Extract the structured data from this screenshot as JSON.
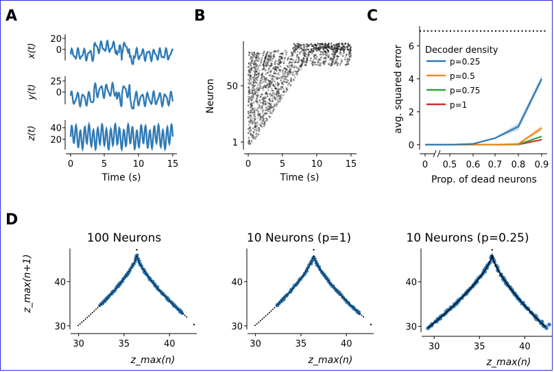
{
  "colors": {
    "blue": "#2f7ab6",
    "orange": "#f08a24",
    "green": "#35a33a",
    "red": "#c9302c",
    "black": "#000000",
    "dots": "#222222"
  },
  "panels": {
    "A": {
      "label": "A",
      "xlabel": "Time (s)",
      "xticks": [
        "0",
        "5",
        "10",
        "15"
      ],
      "rows": [
        {
          "ylabel": "x(t)",
          "yticks": [
            "20",
            "0"
          ]
        },
        {
          "ylabel": "y(t)",
          "yticks": [
            "25",
            "0"
          ]
        },
        {
          "ylabel": "z(t)",
          "yticks": [
            "40",
            "20"
          ]
        }
      ]
    },
    "B": {
      "label": "B",
      "xlabel": "Time (s)",
      "ylabel": "Neuron",
      "xticks": [
        "0",
        "5",
        "10",
        "15"
      ],
      "yticks": [
        "50",
        "1"
      ]
    },
    "C": {
      "label": "C",
      "xlabel": "Prop. of dead neurons",
      "ylabel": "avg. squared error",
      "xticks": [
        "0",
        "0.5",
        "0.6",
        "0.7",
        "0.8",
        "0.9"
      ],
      "yticks": [
        "0",
        "2",
        "4",
        "6"
      ],
      "legend_title": "Decoder density",
      "legend": [
        "p=0.25",
        "p=0.5",
        "p=0.75",
        "p=1"
      ]
    },
    "D": {
      "label": "D",
      "ylabel": "z_max(n+1)",
      "xlabel": "z_max(n)",
      "subtitles": [
        "100 Neurons",
        "10 Neurons (p=1)",
        "10 Neurons (p=0.25)"
      ],
      "xticks": [
        "30",
        "35",
        "40"
      ],
      "yticks": [
        "40",
        "30"
      ]
    }
  },
  "chart_data": [
    {
      "type": "line",
      "panel": "A",
      "series": "x(t)",
      "xlim": [
        0,
        15
      ],
      "ylim": [
        -12,
        22
      ]
    },
    {
      "type": "line",
      "panel": "A",
      "series": "y(t)",
      "xlim": [
        0,
        15
      ],
      "ylim": [
        -12,
        28
      ]
    },
    {
      "type": "line",
      "panel": "A",
      "series": "z(t)",
      "xlim": [
        0,
        15
      ],
      "ylim": [
        12,
        48
      ]
    },
    {
      "type": "scatter",
      "panel": "B",
      "xlim": [
        0,
        15
      ],
      "ylim": [
        1,
        100
      ]
    },
    {
      "type": "line",
      "panel": "C",
      "x": [
        0,
        0.5,
        0.6,
        0.7,
        0.8,
        0.9
      ],
      "series": [
        {
          "name": "p=0.25",
          "values": [
            0,
            0,
            0.05,
            0.4,
            1.1,
            4.0
          ]
        },
        {
          "name": "p=0.5",
          "values": [
            0,
            0,
            0,
            0,
            0.05,
            1.0
          ]
        },
        {
          "name": "p=0.75",
          "values": [
            0,
            0,
            0,
            0,
            0.02,
            0.5
          ]
        },
        {
          "name": "p=1",
          "values": [
            0,
            0,
            0,
            0,
            0.01,
            0.3
          ]
        }
      ],
      "hline": 6.9,
      "ylim": [
        -0.3,
        7.2
      ]
    },
    {
      "type": "scatter",
      "panel": "D",
      "subplot": 0,
      "xlim": [
        29.5,
        43
      ],
      "ylim": [
        29.5,
        47.5
      ],
      "peak": [
        36.4,
        46
      ],
      "left_end": [
        29.9,
        30
      ],
      "right_end": [
        42,
        31.8
      ]
    },
    {
      "type": "scatter",
      "panel": "D",
      "subplot": 1,
      "xlim": [
        29.5,
        43
      ],
      "ylim": [
        29.5,
        47.5
      ],
      "peak": [
        36.4,
        46
      ],
      "left_end": [
        29.9,
        30
      ],
      "right_end": [
        42,
        31.8
      ]
    },
    {
      "type": "scatter",
      "panel": "D",
      "subplot": 2,
      "xlim": [
        29,
        43
      ],
      "ylim": [
        29,
        47.5
      ],
      "peak": [
        36.4,
        46
      ],
      "left_end": [
        29.3,
        29.6
      ],
      "right_end": [
        42.3,
        29.8
      ]
    }
  ]
}
